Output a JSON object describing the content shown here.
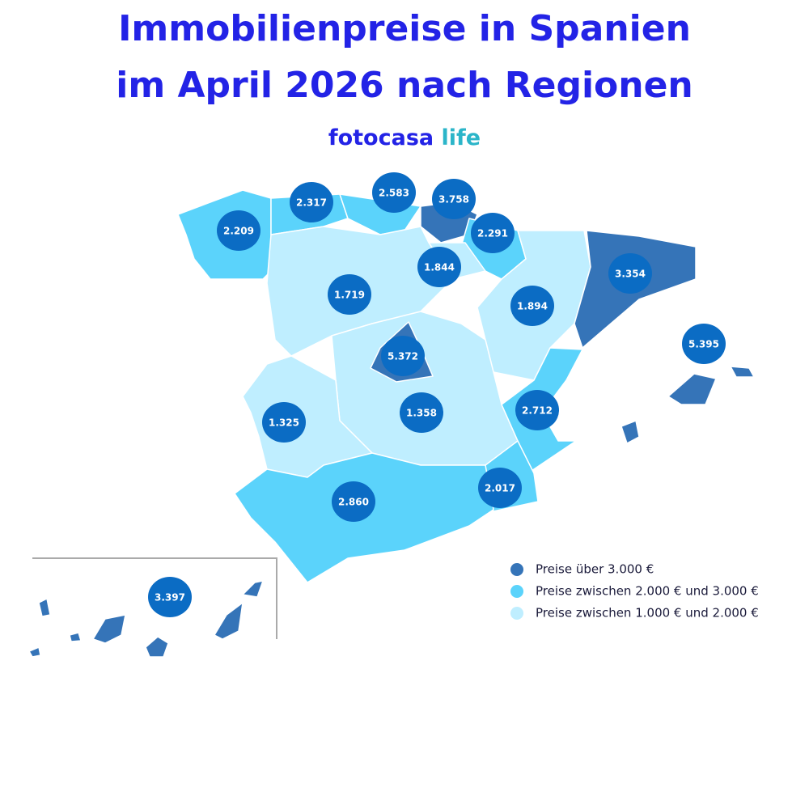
{
  "header": {
    "title_line1": "Immobilienpreise in Spanien",
    "title_line2": "im April 2026 nach Regionen",
    "brand": "fotocasa",
    "brand_suffix": "life"
  },
  "regions": [
    {
      "label": "2.209"
    },
    {
      "label": "2.317"
    },
    {
      "label": "2.583"
    },
    {
      "label": "3.758"
    },
    {
      "label": "2.291"
    },
    {
      "label": "1.844"
    },
    {
      "label": "3.354"
    },
    {
      "label": "1.719"
    },
    {
      "label": "1.894"
    },
    {
      "label": "5.372"
    },
    {
      "label": "5.395"
    },
    {
      "label": "1.325"
    },
    {
      "label": "1.358"
    },
    {
      "label": "2.712"
    },
    {
      "label": "2.017"
    },
    {
      "label": "2.860"
    },
    {
      "label": "3.397"
    }
  ],
  "legend": [
    {
      "label": "Preise über 3.000 €",
      "color": "#3574b8"
    },
    {
      "label": "Preise zwischen 2.000 € und 3.000 €",
      "color": "#5bd3fb"
    },
    {
      "label": "Preise zwischen 1.000 € und 2.000 €",
      "color": "#bfeeff"
    }
  ]
}
